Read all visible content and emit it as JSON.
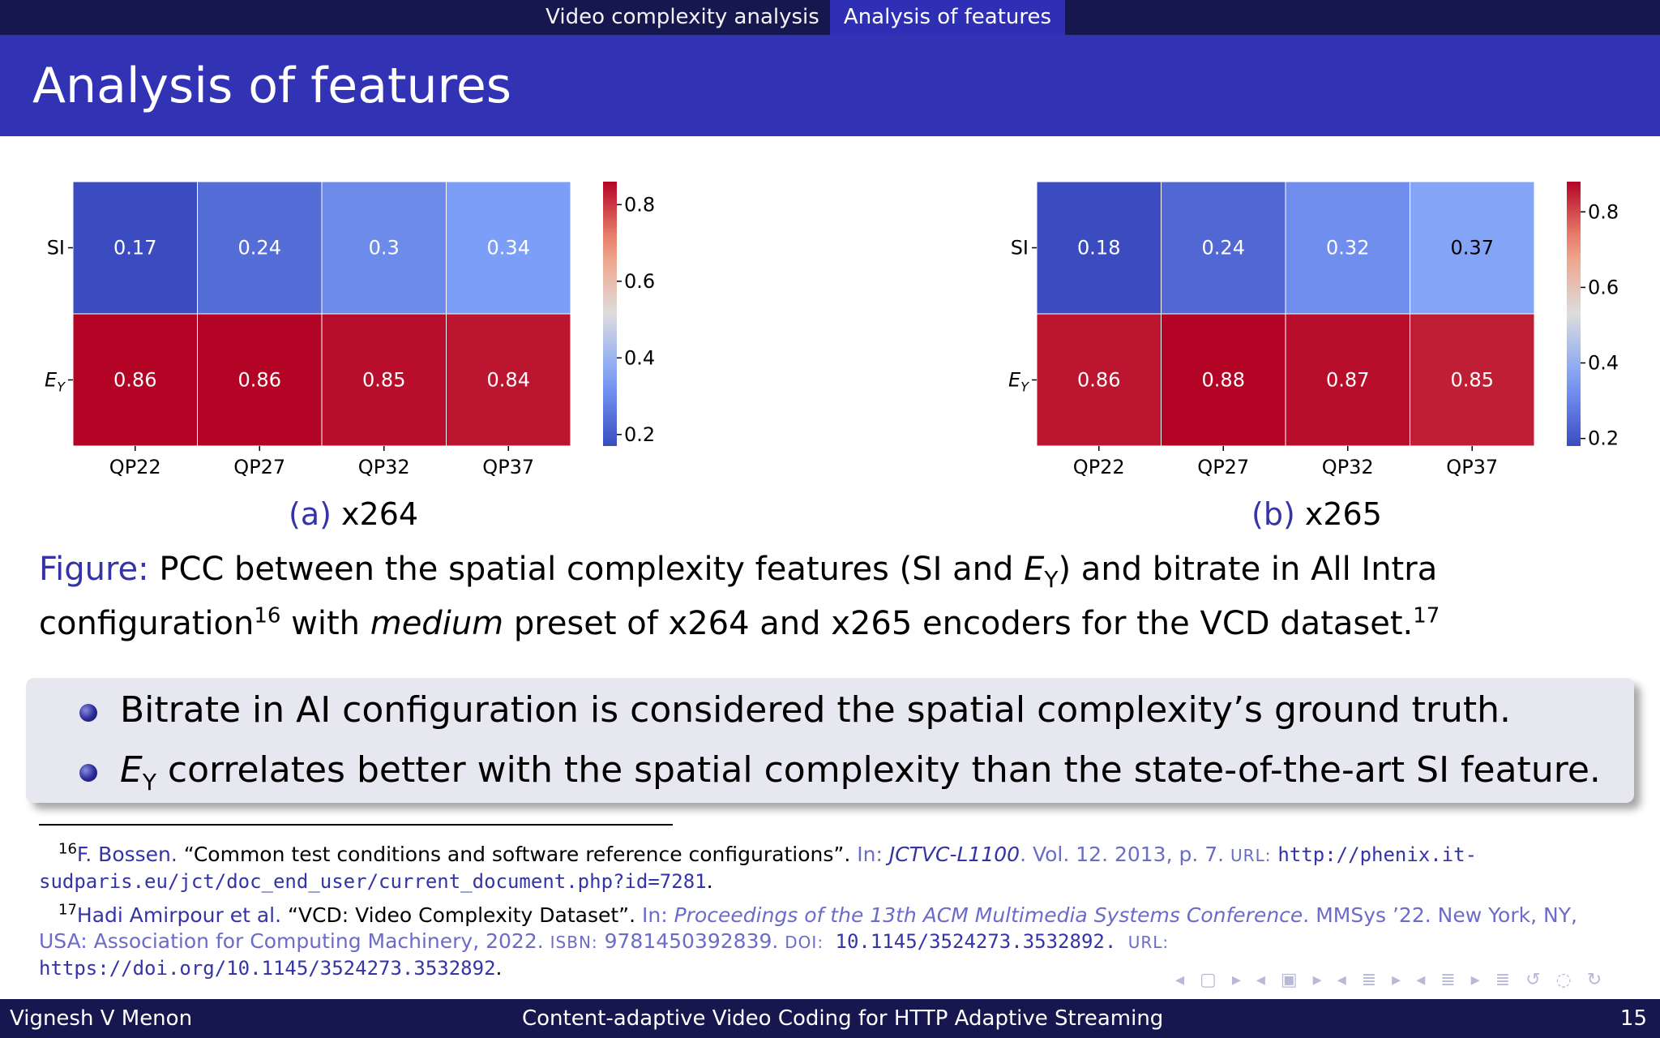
{
  "nav": {
    "sections": [
      "Video complexity analysis",
      "Analysis of features"
    ]
  },
  "title": "Analysis of features",
  "charts": [
    {
      "sub_label": "(a)",
      "sub_title": "x264",
      "chart_data": {
        "type": "heatmap",
        "rows": [
          "SI",
          "E_Y"
        ],
        "columns": [
          "QP22",
          "QP27",
          "QP32",
          "QP37"
        ],
        "values": [
          [
            0.17,
            0.24,
            0.3,
            0.34
          ],
          [
            0.86,
            0.86,
            0.85,
            0.84
          ]
        ],
        "value_labels": [
          [
            "0.17",
            "0.24",
            "0.3",
            "0.34"
          ],
          [
            "0.86",
            "0.86",
            "0.85",
            "0.84"
          ]
        ],
        "colorbar": {
          "range": [
            0.17,
            0.86
          ],
          "ticks": [
            "0.2",
            "0.4",
            "0.6",
            "0.8"
          ],
          "cmap": "coolwarm"
        }
      }
    },
    {
      "sub_label": "(b)",
      "sub_title": "x265",
      "chart_data": {
        "type": "heatmap",
        "rows": [
          "SI",
          "E_Y"
        ],
        "columns": [
          "QP22",
          "QP27",
          "QP32",
          "QP37"
        ],
        "values": [
          [
            0.18,
            0.24,
            0.32,
            0.37
          ],
          [
            0.86,
            0.88,
            0.87,
            0.85
          ]
        ],
        "value_labels": [
          [
            "0.18",
            "0.24",
            "0.32",
            "0.37"
          ],
          [
            "0.86",
            "0.88",
            "0.87",
            "0.85"
          ]
        ],
        "colorbar": {
          "range": [
            0.18,
            0.88
          ],
          "ticks": [
            "0.2",
            "0.4",
            "0.6",
            "0.8"
          ],
          "cmap": "coolwarm"
        }
      }
    }
  ],
  "figure_caption": {
    "label": "Figure:",
    "part1": " PCC between the spatial complexity features (SI and ",
    "var": "E",
    "var_sub": "Y",
    "part2": ") and bitrate in All Intra configuration",
    "ref1": "16",
    "part3": " with ",
    "em": "medium",
    "part4": " preset of x264 and x265 encoders for the VCD dataset.",
    "ref2": "17"
  },
  "bullets": [
    {
      "text": "Bitrate in AI configuration is considered the spatial complexity’s ground truth."
    },
    {
      "var": "E",
      "var_sub": "Y",
      "text": " correlates better with the spatial complexity than the state-of-the-art SI feature."
    }
  ],
  "footnotes": [
    {
      "num": "16",
      "author": "F. Bossen.",
      "title": " “Common test conditions and software reference configurations”.",
      "in": " In: ",
      "venue": "JCTVC-L1100",
      "rest": ". Vol. 12. 2013, p. 7. ",
      "url_label": "url:",
      "url": "http://phenix.it-sudparis.eu/jct/doc_end_user/current_document.php?id=7281",
      "end": "."
    },
    {
      "num": "17",
      "author": "Hadi Amirpour et al.",
      "title": " “VCD: Video Complexity Dataset”.",
      "in": " In: ",
      "venue": "Proceedings of the 13th ACM Multimedia Systems Conference",
      "rest": ". MMSys ’22. New York, NY, USA: Association for Computing Machinery, 2022. ",
      "isbn_label": "isbn:",
      "isbn": " 9781450392839. ",
      "doi_label": "doi:",
      "doi": " 10.1145/3524273.3532892. ",
      "url_label": "url:",
      "url": "https://doi.org/10.1145/3524273.3532892",
      "end": "."
    }
  ],
  "footer": {
    "author": "Vignesh V Menon",
    "talk": "Content-adaptive Video Coding for HTTP Adaptive Streaming",
    "page": "15"
  },
  "nav_symbols": "◂ ▢ ▸ ◂ ▣ ▸ ◂ ≣ ▸ ◂ ≣ ▸ ≣ ↺ ◌ ↻"
}
